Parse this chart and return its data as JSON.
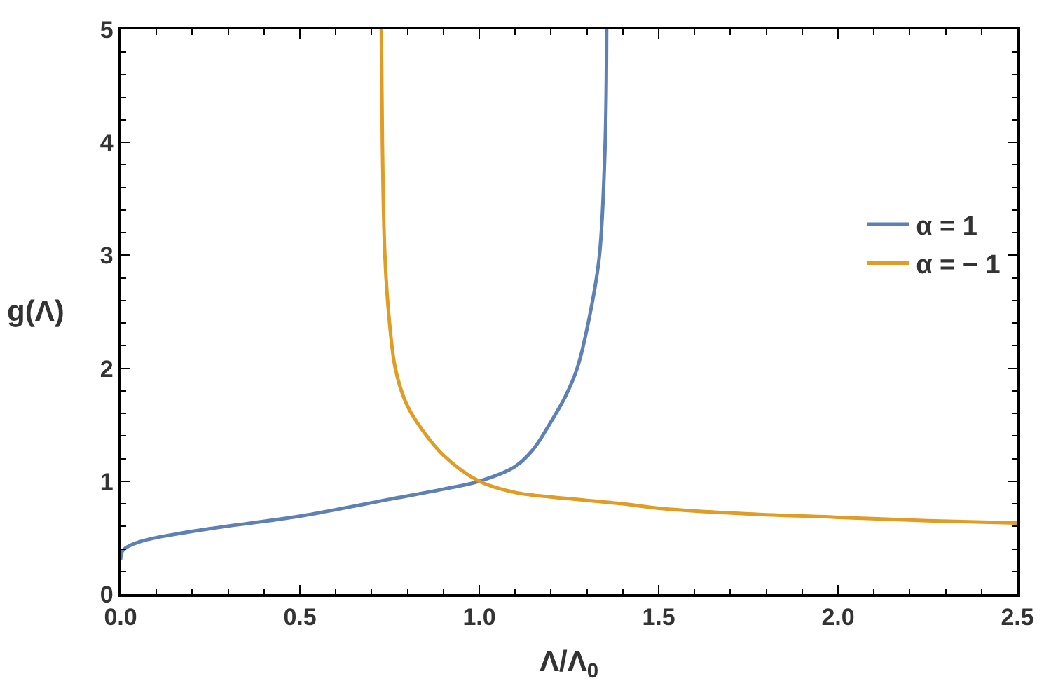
{
  "chart_data": {
    "type": "line",
    "xlabel": "Λ/Λ$_{0}$",
    "ylabel": "g(Λ)",
    "xlim": [
      0,
      2.5
    ],
    "ylim": [
      0,
      5
    ],
    "xticks": [
      {
        "value": 0,
        "label": "0.0"
      },
      {
        "value": 0.5,
        "label": "0.5"
      },
      {
        "value": 1,
        "label": "1.0"
      },
      {
        "value": 1.5,
        "label": "1.5"
      },
      {
        "value": 2,
        "label": "2.0"
      },
      {
        "value": 2.5,
        "label": "2.5"
      }
    ],
    "yticks": [
      0,
      1,
      2,
      3,
      4,
      5
    ],
    "legend": "right",
    "marker": "none",
    "line_style": "solid",
    "series": [
      {
        "name": "α = 1",
        "color": "#5e81b5",
        "x": [
          0,
          0.005,
          0.02,
          0.05,
          0.1,
          0.25,
          0.5,
          0.75,
          0.9,
          1.0,
          1.1,
          1.15,
          1.195,
          1.24,
          1.273,
          1.31,
          1.335,
          1.351,
          1.355
        ],
        "values": [
          0.3,
          0.38,
          0.42,
          0.46,
          0.5,
          0.58,
          0.69,
          0.84,
          0.93,
          1.0,
          1.13,
          1.28,
          1.5,
          1.75,
          2,
          2.5,
          3,
          4,
          5
        ]
      },
      {
        "name": "α = − 1",
        "color": "#e19c24",
        "x": [
          0.727,
          0.73,
          0.737,
          0.75,
          0.766,
          0.795,
          0.831,
          0.9,
          1.0,
          1.1,
          1.2,
          1.4,
          1.5,
          1.75,
          2.0,
          2.25,
          2.5
        ],
        "values": [
          5,
          4,
          3,
          2.4,
          2,
          1.7,
          1.5,
          1.23,
          1.0,
          0.9,
          0.86,
          0.8,
          0.76,
          0.71,
          0.68,
          0.65,
          0.63
        ]
      }
    ]
  }
}
